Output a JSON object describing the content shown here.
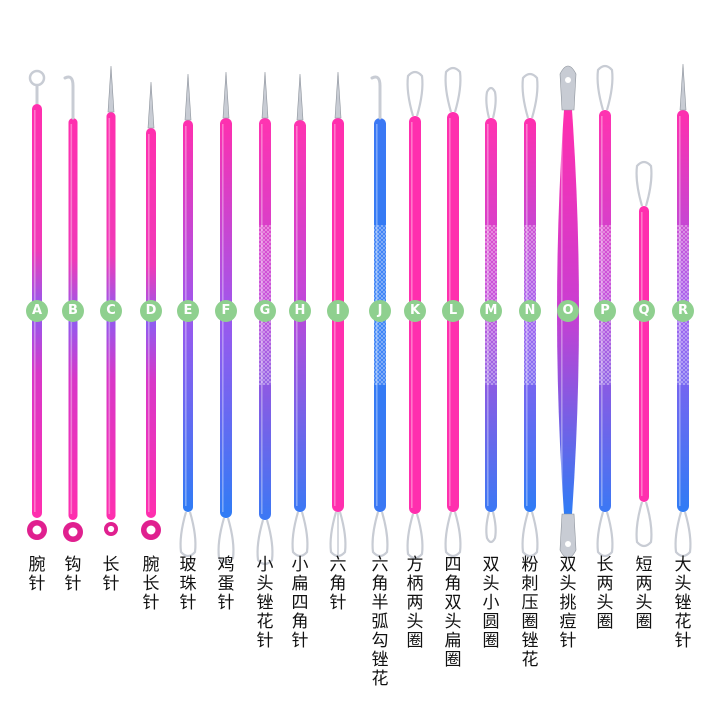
{
  "colors": {
    "pink": "#ff2fae",
    "magenta": "#d837c8",
    "purple": "#8f5cf0",
    "blue": "#2f7cf5",
    "steel": "#c8ccd4",
    "badge": "#8fd08f"
  },
  "tools": [
    {
      "letter": "A",
      "name": "腕针",
      "tip_top": "ring-loop",
      "tip_bottom": "ring-ball"
    },
    {
      "letter": "B",
      "name": "钩针",
      "tip_top": "hook",
      "tip_bottom": "ring-ball"
    },
    {
      "letter": "C",
      "name": "长针",
      "tip_top": "needle",
      "tip_bottom": "small-ball"
    },
    {
      "letter": "D",
      "name": "腕长针",
      "tip_top": "needle",
      "tip_bottom": "ring-ball"
    },
    {
      "letter": "E",
      "name": "玻珠针",
      "tip_top": "needle",
      "tip_bottom": "loop"
    },
    {
      "letter": "F",
      "name": "鸡蛋针",
      "tip_top": "needle",
      "tip_bottom": "loop"
    },
    {
      "letter": "G",
      "name": "小头锉花针",
      "tip_top": "needle",
      "tip_bottom": "loop"
    },
    {
      "letter": "H",
      "name": "小扁四角针",
      "tip_top": "needle",
      "tip_bottom": "loop"
    },
    {
      "letter": "I",
      "name": "六角针",
      "tip_top": "needle",
      "tip_bottom": "split-loop"
    },
    {
      "letter": "J",
      "name": "六角半弧勾锉花",
      "tip_top": "hook",
      "tip_bottom": "loop"
    },
    {
      "letter": "K",
      "name": "方柄两头圈",
      "tip_top": "loop",
      "tip_bottom": "loop"
    },
    {
      "letter": "L",
      "name": "四角双头扁圈",
      "tip_top": "loop",
      "tip_bottom": "loop"
    },
    {
      "letter": "M",
      "name": "双头小圆圈",
      "tip_top": "small-loop",
      "tip_bottom": "small-loop"
    },
    {
      "letter": "N",
      "name": "粉刺压圈锉花",
      "tip_top": "loop",
      "tip_bottom": "loop"
    },
    {
      "letter": "O",
      "name": "双头挑痘针",
      "tip_top": "spoon",
      "tip_bottom": "spoon"
    },
    {
      "letter": "P",
      "name": "长两头圈",
      "tip_top": "loop",
      "tip_bottom": "loop"
    },
    {
      "letter": "Q",
      "name": "短两头圈",
      "tip_top": "loop",
      "tip_bottom": "loop"
    },
    {
      "letter": "R",
      "name": "大头锉花针",
      "tip_top": "needle",
      "tip_bottom": "loop"
    }
  ]
}
